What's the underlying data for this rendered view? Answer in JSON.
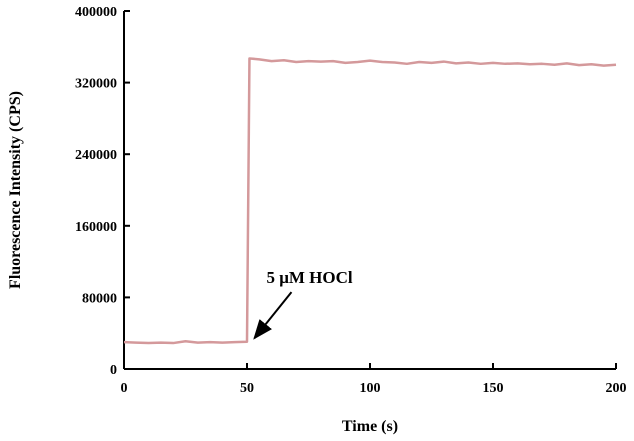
{
  "chart_data": {
    "type": "line",
    "title": "",
    "xlabel": "Time (s)",
    "ylabel": "Fluorescence Intensity (CPS)",
    "xlim": [
      0,
      200
    ],
    "ylim": [
      0,
      400000
    ],
    "xticks": [
      "0",
      "50",
      "100",
      "150",
      "200"
    ],
    "yticks": [
      "0",
      "80000",
      "160000",
      "240000",
      "320000",
      "400000"
    ],
    "grid": false,
    "legend": "none",
    "series": [
      {
        "color": "#d4999b",
        "x": [
          0,
          5,
          10,
          15,
          20,
          25,
          30,
          35,
          40,
          45,
          50,
          51,
          55,
          60,
          65,
          70,
          75,
          80,
          85,
          90,
          95,
          100,
          105,
          110,
          115,
          120,
          125,
          130,
          135,
          140,
          145,
          150,
          155,
          160,
          165,
          170,
          175,
          180,
          185,
          190,
          195,
          200
        ],
        "y": [
          30000,
          29500,
          29000,
          29500,
          29000,
          31000,
          29500,
          30000,
          29500,
          30000,
          30500,
          347000,
          346000,
          344000,
          345000,
          343000,
          344000,
          343500,
          344000,
          342000,
          343000,
          344500,
          343000,
          342500,
          341000,
          343000,
          342000,
          343500,
          341500,
          342500,
          341000,
          342000,
          341000,
          341500,
          340500,
          341000,
          340000,
          341500,
          339500,
          340500,
          339000,
          340000
        ]
      }
    ],
    "annotations": [
      {
        "text": "5 μM HOCl",
        "x": 51,
        "y": 30000
      }
    ]
  }
}
